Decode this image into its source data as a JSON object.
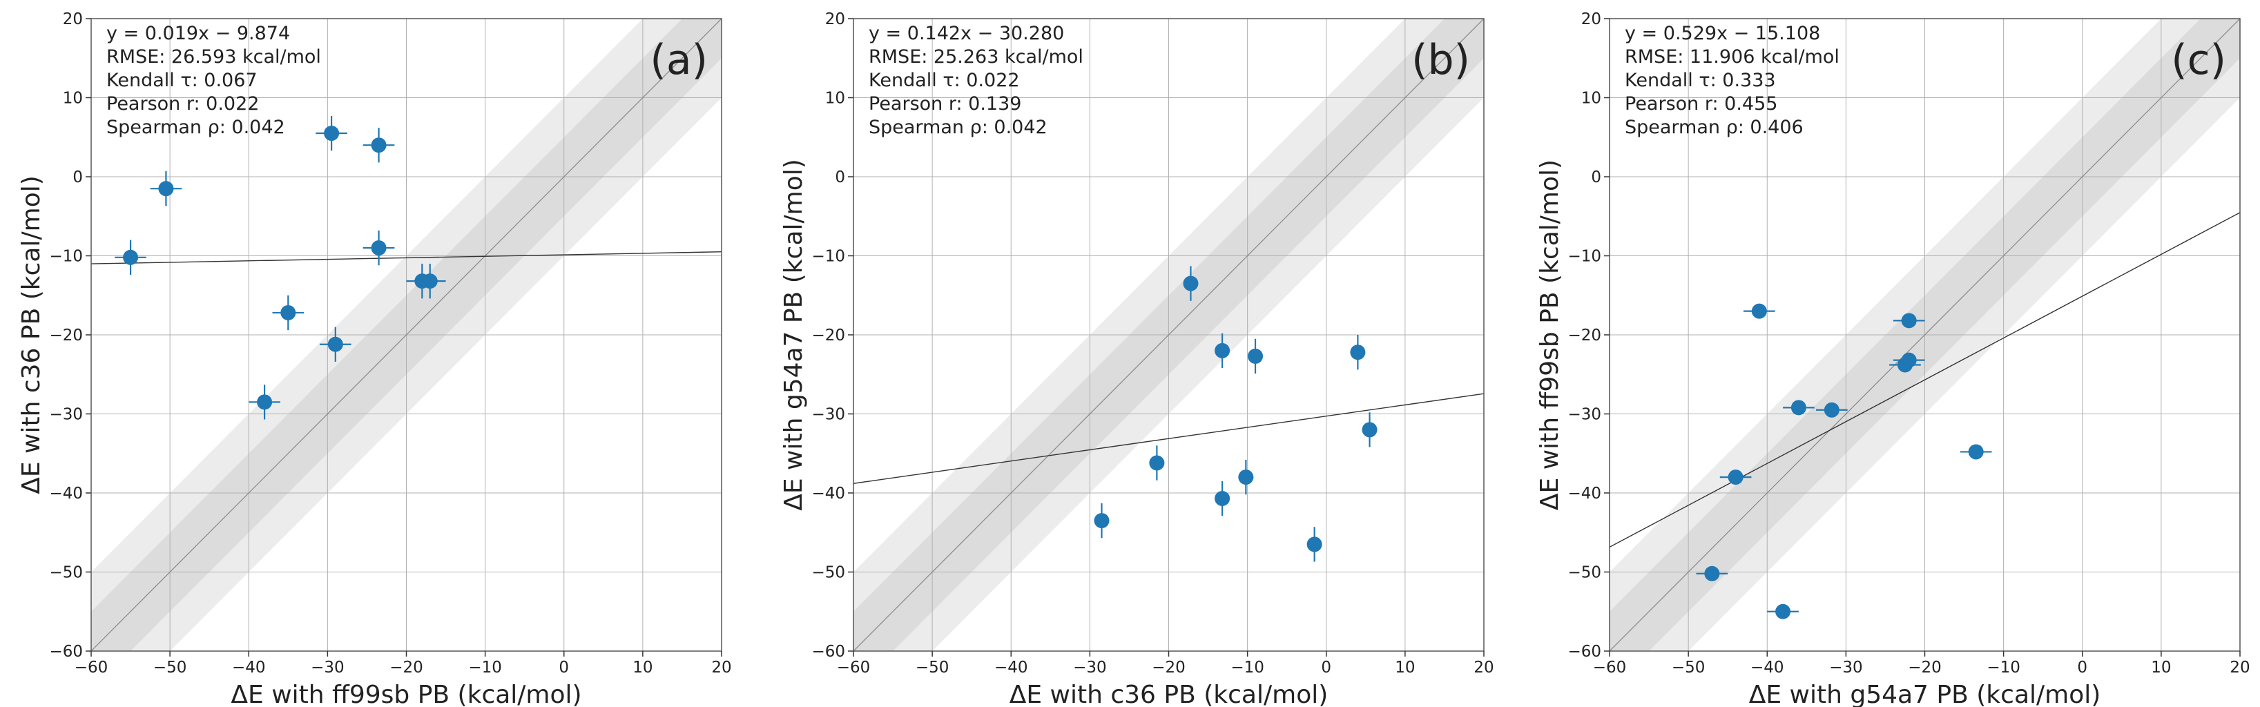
{
  "figure": {
    "panels_count": 3
  },
  "chart_data": [
    {
      "type": "scatter",
      "panel_label": "(a)",
      "xlabel": "ΔE with ff99sb PB (kcal/mol)",
      "ylabel": "ΔE with c36 PB (kcal/mol)",
      "xlim": [
        -60,
        20
      ],
      "ylim": [
        -60,
        20
      ],
      "xticks": [
        -60,
        -50,
        -40,
        -30,
        -20,
        -10,
        0,
        10,
        20
      ],
      "yticks": [
        -60,
        -50,
        -40,
        -30,
        -20,
        -10,
        0,
        10,
        20
      ],
      "grid": true,
      "bands": [
        {
          "half_width": 10,
          "color": "#ececec"
        },
        {
          "half_width": 5,
          "color": "#dcdcdc"
        }
      ],
      "fit": {
        "slope": 0.019,
        "intercept": -9.874
      },
      "stats_lines": [
        "y = 0.019x − 9.874",
        "RMSE: 26.593 kcal/mol",
        "Kendall τ: 0.067",
        "Pearson r: 0.022",
        "Spearman ρ: 0.042"
      ],
      "points": [
        {
          "x": -55.0,
          "y": -10.2,
          "xerr": 2.0,
          "yerr": 2.2
        },
        {
          "x": -50.5,
          "y": -1.5,
          "xerr": 2.0,
          "yerr": 2.2
        },
        {
          "x": -38.0,
          "y": -28.5,
          "xerr": 2.0,
          "yerr": 2.2
        },
        {
          "x": -35.0,
          "y": -17.2,
          "xerr": 2.0,
          "yerr": 2.2
        },
        {
          "x": -29.5,
          "y": 5.5,
          "xerr": 2.0,
          "yerr": 2.2
        },
        {
          "x": -29.0,
          "y": -21.2,
          "xerr": 2.0,
          "yerr": 2.2
        },
        {
          "x": -23.5,
          "y": 4.0,
          "xerr": 2.0,
          "yerr": 2.2
        },
        {
          "x": -23.5,
          "y": -9.0,
          "xerr": 2.0,
          "yerr": 2.2
        },
        {
          "x": -18.0,
          "y": -13.2,
          "xerr": 2.0,
          "yerr": 2.2
        },
        {
          "x": -17.0,
          "y": -13.2,
          "xerr": 2.0,
          "yerr": 2.2
        }
      ]
    },
    {
      "type": "scatter",
      "panel_label": "(b)",
      "xlabel": "ΔE with c36 PB (kcal/mol)",
      "ylabel": "ΔE with g54a7 PB (kcal/mol)",
      "xlim": [
        -60,
        20
      ],
      "ylim": [
        -60,
        20
      ],
      "xticks": [
        -60,
        -50,
        -40,
        -30,
        -20,
        -10,
        0,
        10,
        20
      ],
      "yticks": [
        -60,
        -50,
        -40,
        -30,
        -20,
        -10,
        0,
        10,
        20
      ],
      "grid": true,
      "bands": [
        {
          "half_width": 10,
          "color": "#ececec"
        },
        {
          "half_width": 5,
          "color": "#dcdcdc"
        }
      ],
      "fit": {
        "slope": 0.142,
        "intercept": -30.28
      },
      "stats_lines": [
        "y = 0.142x − 30.280",
        "RMSE: 25.263 kcal/mol",
        "Kendall τ: 0.022",
        "Pearson r: 0.139",
        "Spearman ρ: 0.042"
      ],
      "points": [
        {
          "x": -28.5,
          "y": -43.5,
          "xerr": 0.3,
          "yerr": 2.2
        },
        {
          "x": -21.5,
          "y": -36.2,
          "xerr": 0.3,
          "yerr": 2.2
        },
        {
          "x": -17.2,
          "y": -13.5,
          "xerr": 0.3,
          "yerr": 2.2
        },
        {
          "x": -13.2,
          "y": -22.0,
          "xerr": 0.3,
          "yerr": 2.2
        },
        {
          "x": -13.2,
          "y": -40.7,
          "xerr": 0.3,
          "yerr": 2.2
        },
        {
          "x": -10.2,
          "y": -38.0,
          "xerr": 0.3,
          "yerr": 2.2
        },
        {
          "x": -9.0,
          "y": -22.7,
          "xerr": 0.3,
          "yerr": 2.2
        },
        {
          "x": -1.5,
          "y": -46.5,
          "xerr": 0.3,
          "yerr": 2.2
        },
        {
          "x": 4.0,
          "y": -22.2,
          "xerr": 0.3,
          "yerr": 2.2
        },
        {
          "x": 5.5,
          "y": -32.0,
          "xerr": 0.3,
          "yerr": 2.2
        }
      ]
    },
    {
      "type": "scatter",
      "panel_label": "(c)",
      "xlabel": "ΔE with g54a7 PB (kcal/mol)",
      "ylabel": "ΔE with ff99sb PB (kcal/mol)",
      "xlim": [
        -60,
        20
      ],
      "ylim": [
        -60,
        20
      ],
      "xticks": [
        -60,
        -50,
        -40,
        -30,
        -20,
        -10,
        0,
        10,
        20
      ],
      "yticks": [
        -60,
        -50,
        -40,
        -30,
        -20,
        -10,
        0,
        10,
        20
      ],
      "grid": true,
      "bands": [
        {
          "half_width": 10,
          "color": "#ececec"
        },
        {
          "half_width": 5,
          "color": "#dcdcdc"
        }
      ],
      "fit": {
        "slope": 0.529,
        "intercept": -15.108
      },
      "stats_lines": [
        "y = 0.529x − 15.108",
        "RMSE: 11.906 kcal/mol",
        "Kendall τ: 0.333",
        "Pearson r: 0.455",
        "Spearman ρ: 0.406"
      ],
      "points": [
        {
          "x": -47.0,
          "y": -50.2,
          "xerr": 2.0,
          "yerr": 0.3
        },
        {
          "x": -44.0,
          "y": -38.0,
          "xerr": 2.0,
          "yerr": 0.3
        },
        {
          "x": -41.0,
          "y": -17.0,
          "xerr": 2.0,
          "yerr": 0.3
        },
        {
          "x": -38.0,
          "y": -55.0,
          "xerr": 2.0,
          "yerr": 0.3
        },
        {
          "x": -36.0,
          "y": -29.2,
          "xerr": 2.0,
          "yerr": 0.3
        },
        {
          "x": -31.8,
          "y": -29.5,
          "xerr": 2.0,
          "yerr": 0.3
        },
        {
          "x": -22.5,
          "y": -23.8,
          "xerr": 2.0,
          "yerr": 0.3
        },
        {
          "x": -22.0,
          "y": -23.2,
          "xerr": 2.0,
          "yerr": 0.3
        },
        {
          "x": -22.0,
          "y": -18.2,
          "xerr": 2.0,
          "yerr": 0.3
        },
        {
          "x": -13.5,
          "y": -34.8,
          "xerr": 2.0,
          "yerr": 0.3
        }
      ]
    }
  ]
}
